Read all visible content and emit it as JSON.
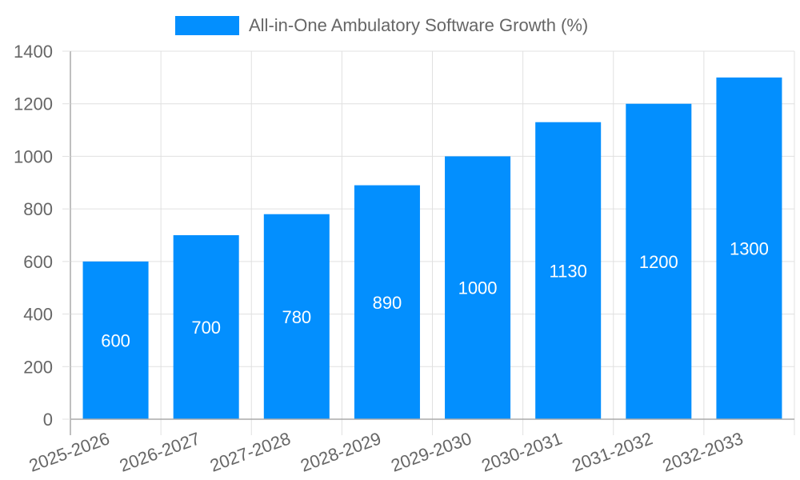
{
  "chart_data": {
    "type": "bar",
    "title": "",
    "legend": [
      {
        "label": "All-in-One Ambulatory Software Growth (%)",
        "color": "#038ffe"
      }
    ],
    "legend_position": "top",
    "categories": [
      "2025-2026",
      "2026-2027",
      "2027-2028",
      "2028-2029",
      "2029-2030",
      "2030-2031",
      "2031-2032",
      "2032-2033"
    ],
    "series": [
      {
        "name": "All-in-One Ambulatory Software Growth (%)",
        "values": [
          600,
          700,
          780,
          890,
          1000,
          1130,
          1200,
          1300
        ]
      }
    ],
    "data_labels": [
      "600",
      "700",
      "780",
      "890",
      "1000",
      "1130",
      "1200",
      "1300"
    ],
    "xlabel": "",
    "ylabel": "",
    "ylim": [
      0,
      1400
    ],
    "yticks": [
      0,
      200,
      400,
      600,
      800,
      1000,
      1200,
      1400
    ],
    "grid": true
  },
  "legend": {
    "label": "All-in-One Ambulatory Software Growth (%)"
  },
  "colors": {
    "bar": "#038ffe",
    "grid": "#e0e0e0",
    "axis": "#aaaaaa",
    "tick_text": "#666666",
    "data_label": "#ffffff"
  }
}
